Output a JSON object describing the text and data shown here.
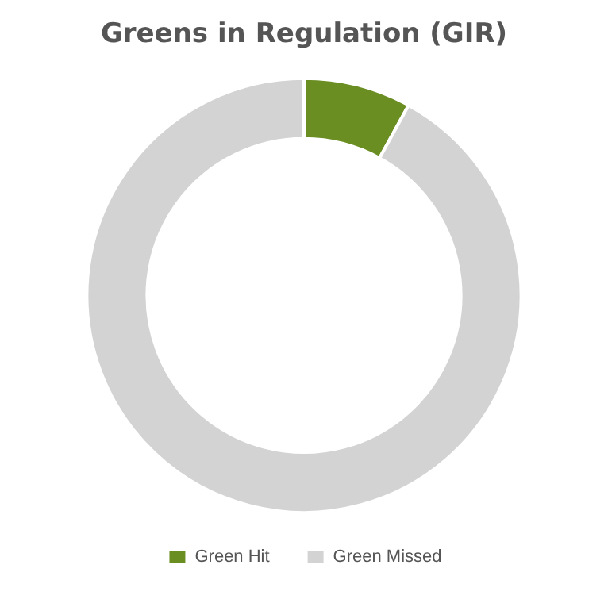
{
  "chart_data": {
    "type": "donut",
    "title": "Greens in Regulation (GIR)",
    "categories": [
      "Green Hit",
      "Green Missed"
    ],
    "values": [
      8,
      92
    ],
    "colors": [
      "#6b8e23",
      "#d3d3d3"
    ],
    "legend": "bottom"
  }
}
